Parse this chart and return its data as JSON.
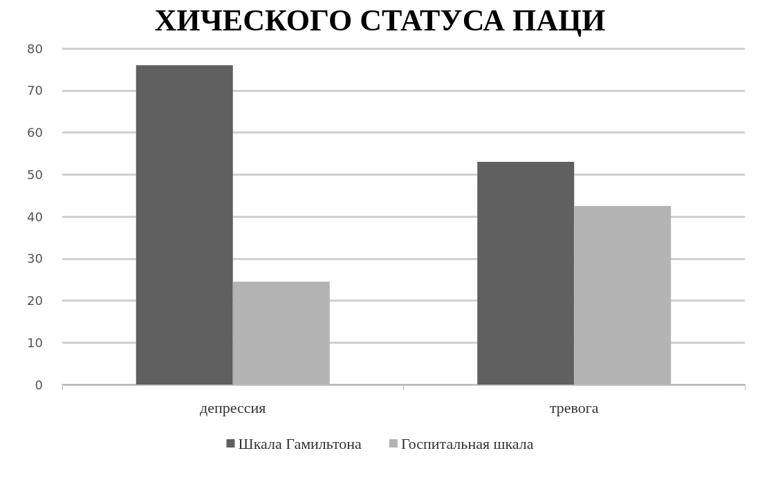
{
  "chart_data": {
    "type": "bar",
    "title": "ХИЧЕСКОГО СТАТУСА ПАЦИ",
    "categories": [
      "депрессия",
      "тревога"
    ],
    "series": [
      {
        "name": "Шкала Гамильтона",
        "color": "#606060",
        "values": [
          76,
          53
        ]
      },
      {
        "name": "Госпитальная шкала",
        "color": "#b3b3b3",
        "values": [
          24.5,
          42.5
        ]
      }
    ],
    "ylim": [
      0,
      80
    ],
    "yticks": [
      0,
      10,
      20,
      30,
      40,
      50,
      60,
      70,
      80
    ],
    "grid": "y",
    "legend": "bottom"
  }
}
